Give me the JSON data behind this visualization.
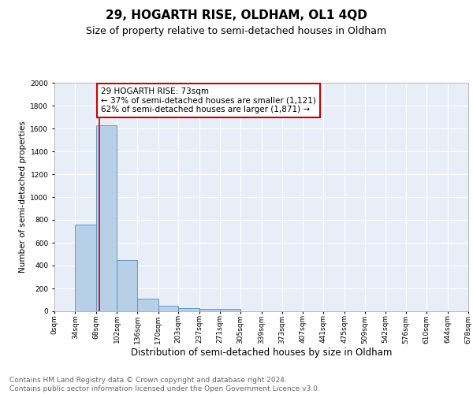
{
  "title1": "29, HOGARTH RISE, OLDHAM, OL1 4QD",
  "title2": "Size of property relative to semi-detached houses in Oldham",
  "xlabel": "Distribution of semi-detached houses by size in Oldham",
  "ylabel": "Number of semi-detached properties",
  "footnote": "Contains HM Land Registry data © Crown copyright and database right 2024.\nContains public sector information licensed under the Open Government Licence v3.0.",
  "bin_edges": [
    0,
    34,
    68,
    102,
    136,
    170,
    203,
    237,
    271,
    305,
    339,
    373,
    407,
    441,
    475,
    509,
    542,
    576,
    610,
    644,
    678
  ],
  "bar_heights": [
    0,
    760,
    1630,
    450,
    110,
    45,
    30,
    20,
    20,
    0,
    0,
    0,
    0,
    0,
    0,
    0,
    0,
    0,
    0,
    0
  ],
  "bar_color": "#b8cfe8",
  "bar_edge_color": "#5590c8",
  "background_color": "#e8eef8",
  "property_size": 73,
  "annotation_text": "29 HOGARTH RISE: 73sqm\n← 37% of semi-detached houses are smaller (1,121)\n62% of semi-detached houses are larger (1,871) →",
  "annotation_box_color": "#cc0000",
  "vline_color": "#cc0000",
  "ylim": [
    0,
    2000
  ],
  "yticks": [
    0,
    200,
    400,
    600,
    800,
    1000,
    1200,
    1400,
    1600,
    1800,
    2000
  ],
  "title1_fontsize": 11,
  "title2_fontsize": 9,
  "xlabel_fontsize": 8.5,
  "ylabel_fontsize": 7.5,
  "tick_fontsize": 6.5,
  "annotation_fontsize": 7.5,
  "footnote_fontsize": 6.5
}
